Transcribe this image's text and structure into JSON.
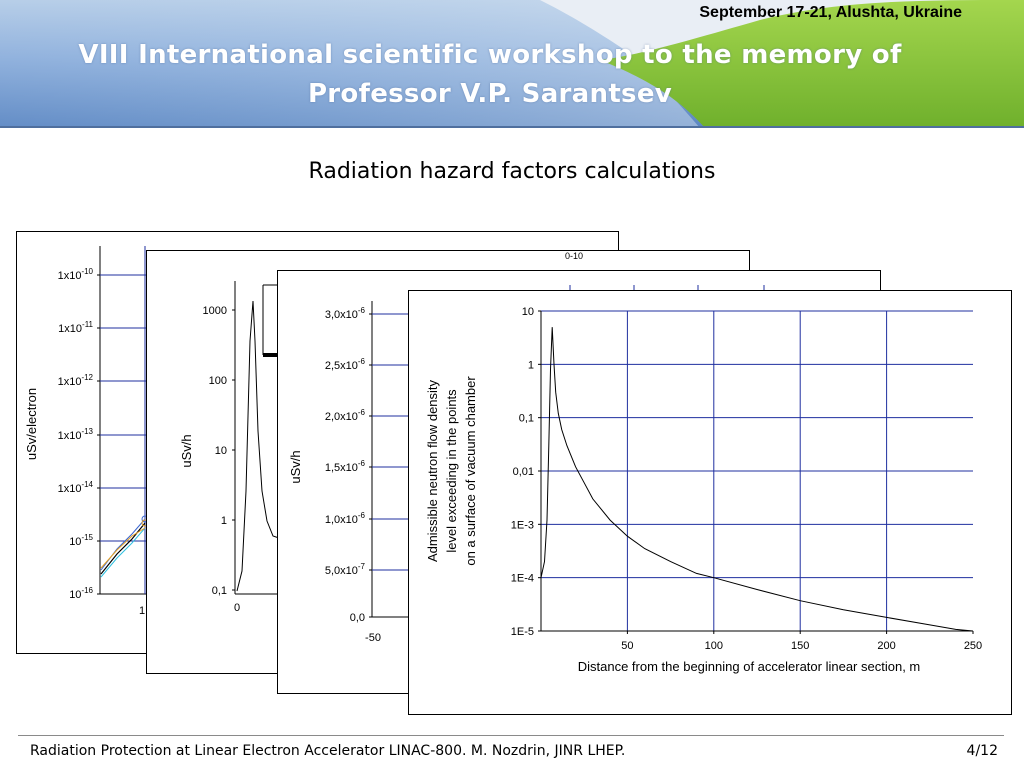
{
  "header": {
    "date_place": "September 17-21, Alushta, Ukraine",
    "title_line1": "VIII International scientific workshop to the memory of",
    "title_line2": "Professor V.P. Sarantsev",
    "colors": {
      "blue": "#5b86c2",
      "green": "#7fc037",
      "title_text": "#ffffff"
    }
  },
  "slide_title": "Radiation hazard factors calculations",
  "panels": {
    "panel1": {
      "ylabel": "uSv/electron",
      "ytick_labels": [
        "1x10-10",
        "1x10-11",
        "1x10-12",
        "1x10-13",
        "1x10-14",
        "10-15",
        "10-16"
      ],
      "xtick_visible": "1"
    },
    "panel2": {
      "ylabel": "uSv/h",
      "ytick_labels": [
        "1000",
        "100",
        "10",
        "1",
        "0,1"
      ],
      "xtick_visible": "0",
      "corner_fragment": "0-10"
    },
    "panel3": {
      "ylabel": "uSv/h",
      "ytick_labels": [
        "3,0x10-6",
        "2,5x10-6",
        "2,0x10-6",
        "1,5x10-6",
        "1,0x10-6",
        "5,0x10-7",
        "0,0"
      ],
      "xtick_visible": "-50"
    },
    "panel4": {
      "ylabel_lines": [
        "Admissible neutron flow density",
        "level exceeding in the points",
        "on a surface of vacuum chamber"
      ],
      "xlabel": "Distance from the beginning of accelerator linear section, m"
    }
  },
  "chart_data": {
    "type": "line",
    "title": "",
    "xlabel": "Distance from the beginning of accelerator linear section, m",
    "ylabel": "Admissible neutron flow density level exceeding in the points on a surface of vacuum chamber",
    "x_ticks": [
      50,
      100,
      150,
      200,
      250
    ],
    "y_tick_labels": [
      "10",
      "1",
      "0,1",
      "0,01",
      "1E-3",
      "1E-4",
      "1E-5"
    ],
    "xlim": [
      0,
      250
    ],
    "ylim": [
      1e-05,
      10
    ],
    "yscale": "log",
    "grid": true,
    "grid_color": "#1f2f9f",
    "line_color": "#000000",
    "series": [
      {
        "x": [
          0,
          2,
          3.5,
          4.5,
          5.5,
          6.5,
          7.5,
          8.5,
          10,
          12,
          15,
          20,
          25,
          30,
          40,
          50,
          60,
          75,
          90,
          100,
          125,
          150,
          175,
          200,
          225,
          240,
          250
        ],
        "values": [
          0.0001,
          0.0002,
          0.0012,
          0.03,
          0.8,
          5.0,
          1.0,
          0.3,
          0.12,
          0.06,
          0.03,
          0.012,
          0.006,
          0.003,
          0.0012,
          0.0006,
          0.00035,
          0.0002,
          0.00012,
          0.0001,
          6e-05,
          3.7e-05,
          2.5e-05,
          1.8e-05,
          1.3e-05,
          1.07e-05,
          1e-05
        ]
      }
    ]
  },
  "footer": {
    "left": "Radiation Protection at Linear Electron Accelerator LINAC-800. M. Nozdrin, JINR LHEP.",
    "right": "4/12"
  }
}
